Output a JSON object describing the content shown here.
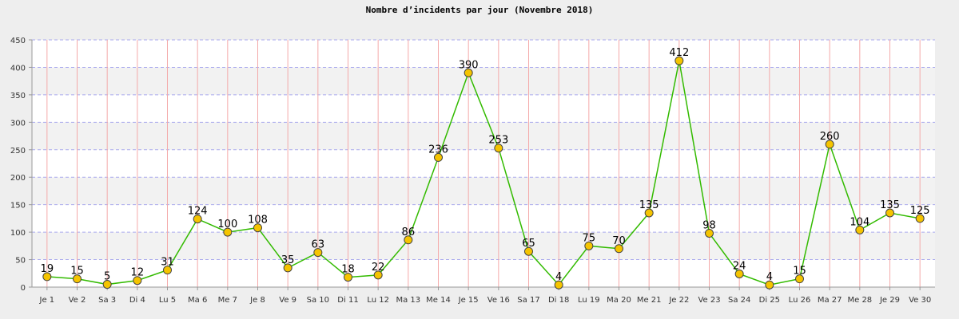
{
  "chart_data": {
    "type": "line",
    "title": "Nombre d’incidents par jour (Novembre 2018)",
    "categories": [
      "Je 1",
      "Ve 2",
      "Sa 3",
      "Di 4",
      "Lu 5",
      "Ma 6",
      "Me 7",
      "Je 8",
      "Ve 9",
      "Sa 10",
      "Di 11",
      "Lu 12",
      "Ma 13",
      "Me 14",
      "Je 15",
      "Ve 16",
      "Sa 17",
      "Di 18",
      "Lu 19",
      "Ma 20",
      "Me 21",
      "Je 22",
      "Ve 23",
      "Sa 24",
      "Di 25",
      "Lu 26",
      "Ma 27",
      "Me 28",
      "Je 29",
      "Ve 30"
    ],
    "values": [
      19,
      15,
      5,
      12,
      31,
      124,
      100,
      108,
      35,
      63,
      18,
      22,
      86,
      236,
      390,
      253,
      65,
      4,
      75,
      70,
      135,
      412,
      98,
      24,
      4,
      15,
      260,
      104,
      135,
      125
    ],
    "ylim": [
      0,
      450
    ],
    "yticks": [
      0,
      50,
      100,
      150,
      200,
      250,
      300,
      350,
      400,
      450
    ],
    "grid": true,
    "line_color": "#33bb00",
    "marker_color": "#f5c400",
    "marker_stroke": "#444444",
    "band_color": "#f2f2f2",
    "hgrid_color": "#aaaaee",
    "vgrid_color": "#f4aaaa"
  }
}
